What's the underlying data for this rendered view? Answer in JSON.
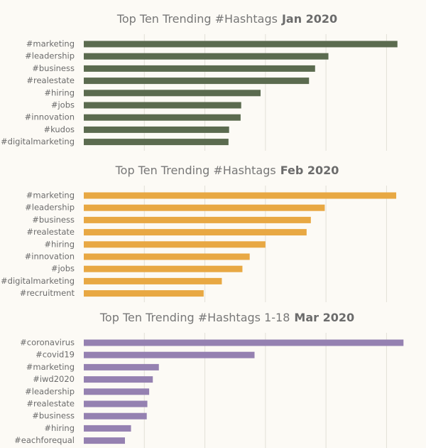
{
  "chart_data": [
    {
      "type": "bar",
      "orientation": "horizontal",
      "title": "Top Ten Trending #Hashtags",
      "title_bold": "Jan 2020",
      "color": "#5b6b4f",
      "categories": [
        "#marketing",
        "#leadership",
        "#business",
        "#realestate",
        "#hiring",
        "#jobs",
        "#innovation",
        "#kudos",
        "#digitalmarketing"
      ],
      "values": [
        5.18,
        4.04,
        3.82,
        3.72,
        2.92,
        2.6,
        2.59,
        2.4,
        2.39
      ],
      "xlim": [
        0,
        5.3
      ],
      "xticks": [
        1,
        2,
        3,
        4,
        5
      ],
      "grid": true
    },
    {
      "type": "bar",
      "orientation": "horizontal",
      "title": "Top Ten Trending #Hashtags",
      "title_bold": "Feb 2020",
      "color": "#e8a843",
      "categories": [
        "#marketing",
        "#leadership",
        "#business",
        "#realestate",
        "#hiring",
        "#innovation",
        "#jobs",
        "#digitalmarketing",
        "#recruitment"
      ],
      "values": [
        5.16,
        3.98,
        3.75,
        3.68,
        3.0,
        2.74,
        2.62,
        2.28,
        1.98
      ],
      "xlim": [
        0,
        5.3
      ],
      "xticks": [
        1,
        2,
        3,
        4,
        5
      ],
      "grid": true
    },
    {
      "type": "bar",
      "orientation": "horizontal",
      "title": "Top Ten Trending #Hashtags  1-18",
      "title_bold": "Mar 2020",
      "color": "#9581b1",
      "categories": [
        "#coronavirus",
        "#covid19",
        "#marketing",
        "#iwd2020",
        "#leadership",
        "#realestate",
        "#business",
        "#hiring",
        "#eachforequal"
      ],
      "values": [
        5.28,
        2.82,
        1.24,
        1.14,
        1.08,
        1.05,
        1.04,
        0.78,
        0.68
      ],
      "xlim": [
        0,
        5.3
      ],
      "xticks": [
        1,
        2,
        3,
        4,
        5
      ],
      "grid": true
    }
  ]
}
